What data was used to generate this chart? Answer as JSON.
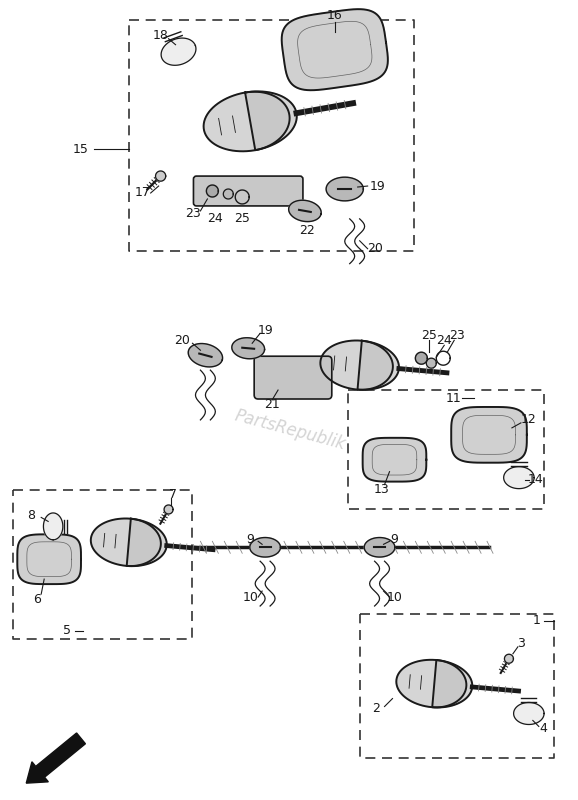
{
  "bg_color": "#ffffff",
  "line_color": "#1a1a1a",
  "watermark": "PartsRepublik",
  "figsize": [
    5.78,
    8.0
  ],
  "dpi": 100
}
